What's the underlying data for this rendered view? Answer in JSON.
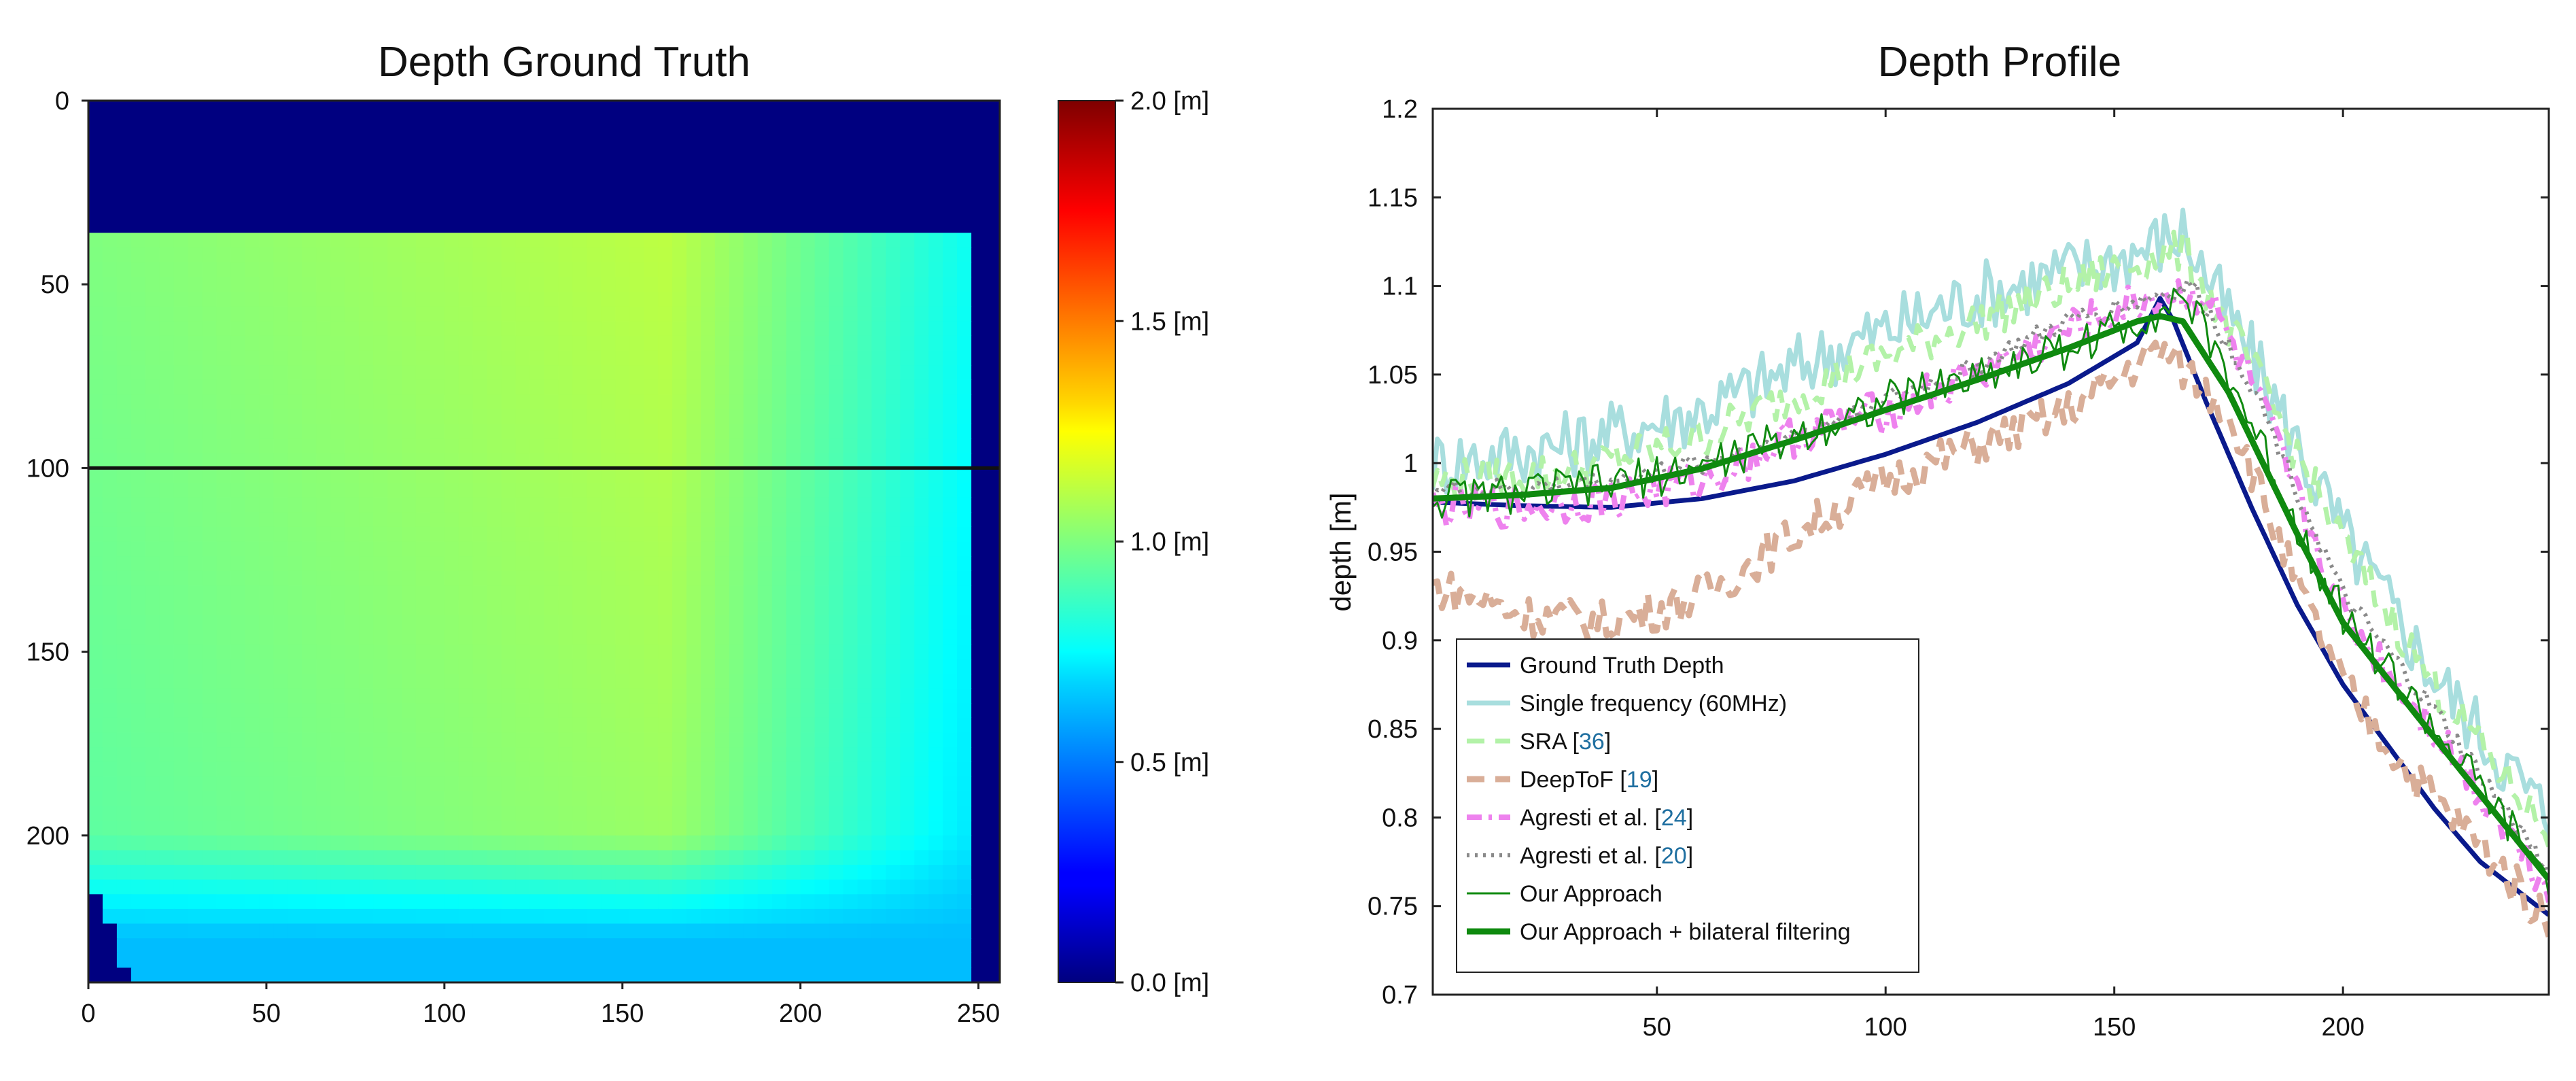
{
  "chart_data": [
    {
      "type": "heatmap",
      "title": "Depth Ground Truth",
      "x_ticks": [
        0,
        50,
        100,
        150,
        200,
        250
      ],
      "y_ticks": [
        0,
        50,
        100,
        150,
        200
      ],
      "xlim": [
        0,
        256
      ],
      "ylim": [
        240,
        0
      ],
      "colormap": "jet",
      "colorbar": {
        "range": [
          0.0,
          2.0
        ],
        "ticks": [
          0.0,
          0.5,
          1.0,
          1.5,
          2.0
        ],
        "tick_labels": [
          "0.0 [m]",
          "0.5 [m]",
          "1.0 [m]",
          "1.5 [m]",
          "2.0 [m]"
        ]
      },
      "profile_row": 100,
      "regions": {
        "background_depth": 0.0,
        "surface_top_row": 37,
        "surface_right_col": 246,
        "bright_seam_col": 163,
        "bright_seam_depth": 1.12,
        "left_edge_depth": 1.0,
        "right_edge_depth": 0.78,
        "bottom_floor_start_row": 210,
        "bottom_floor_depth": 0.62
      }
    },
    {
      "type": "line",
      "title": "Depth Profile",
      "xlabel": "",
      "ylabel": "depth [m]",
      "xlim": [
        1,
        245
      ],
      "ylim": [
        0.7,
        1.2
      ],
      "x_ticks": [
        50,
        100,
        150,
        200
      ],
      "y_ticks": [
        0.7,
        0.75,
        0.8,
        0.85,
        0.9,
        0.95,
        1,
        1.05,
        1.1,
        1.15,
        1.2
      ],
      "y_tick_labels": [
        "0.7",
        "0.75",
        "0.8",
        "0.85",
        "0.9",
        "0.95",
        "1",
        "1.05",
        "1.1",
        "1.15",
        "1.2"
      ],
      "legend_position": "bottom-left",
      "series": [
        {
          "name": "Ground Truth Depth",
          "label": "Ground Truth Depth",
          "ref": "",
          "color": "#0a1a8c",
          "style": "solid",
          "width": 7,
          "noise": 0,
          "x": [
            1,
            20,
            40,
            60,
            80,
            100,
            120,
            140,
            155,
            160,
            163,
            170,
            180,
            190,
            200,
            210,
            220,
            230,
            245
          ],
          "values": [
            0.978,
            0.976,
            0.975,
            0.98,
            0.99,
            1.005,
            1.023,
            1.045,
            1.068,
            1.093,
            1.08,
            1.035,
            0.975,
            0.92,
            0.875,
            0.84,
            0.805,
            0.775,
            0.745
          ]
        },
        {
          "name": "Single frequency (60MHz)",
          "label": "Single frequency (60MHz)",
          "ref": "",
          "color": "#a8dede",
          "style": "solid",
          "width": 7,
          "noise": 0.02,
          "x": [
            1,
            30,
            60,
            90,
            120,
            150,
            165,
            180,
            200,
            220,
            245
          ],
          "values": [
            1.0,
            1.01,
            1.03,
            1.065,
            1.095,
            1.115,
            1.13,
            1.06,
            0.96,
            0.88,
            0.8
          ]
        },
        {
          "name": "SRA",
          "label": "SRA [",
          "ref": "36",
          "color": "#b3f2a8",
          "style": "dash",
          "width": 7,
          "noise": 0.012,
          "x": [
            1,
            30,
            60,
            90,
            120,
            150,
            165,
            180,
            200,
            220,
            245
          ],
          "values": [
            0.99,
            0.995,
            1.015,
            1.05,
            1.08,
            1.11,
            1.12,
            1.055,
            0.955,
            0.875,
            0.79
          ]
        },
        {
          "name": "DeepToF",
          "label": "DeepToF [",
          "ref": "19",
          "color": "#d9ae98",
          "style": "dash",
          "width": 9,
          "noise": 0.012,
          "x": [
            1,
            10,
            20,
            40,
            60,
            80,
            100,
            120,
            140,
            160,
            175,
            190,
            200,
            210,
            220,
            230,
            245
          ],
          "values": [
            0.93,
            0.925,
            0.915,
            0.91,
            0.925,
            0.96,
            0.99,
            1.01,
            1.03,
            1.065,
            1.03,
            0.93,
            0.875,
            0.84,
            0.81,
            0.785,
            0.74
          ]
        },
        {
          "name": "Agresti et al. [24]",
          "label": "Agresti et al. [",
          "ref": "24",
          "color": "#ee82ee",
          "style": "dashdot",
          "width": 8,
          "noise": 0.012,
          "x": [
            1,
            20,
            40,
            60,
            80,
            100,
            120,
            140,
            160,
            170,
            180,
            200,
            220,
            245
          ],
          "values": [
            0.975,
            0.975,
            0.98,
            0.99,
            1.015,
            1.03,
            1.05,
            1.075,
            1.095,
            1.095,
            1.045,
            0.915,
            0.85,
            0.76
          ]
        },
        {
          "name": "Agresti et al. [20]",
          "label": "Agresti et al. [",
          "ref": "20",
          "color": "#8a8a8a",
          "style": "dot",
          "width": 6,
          "noise": 0.006,
          "x": [
            1,
            20,
            40,
            60,
            80,
            100,
            120,
            140,
            160,
            167,
            180,
            200,
            220,
            245
          ],
          "values": [
            0.985,
            0.985,
            0.99,
            1.0,
            1.015,
            1.035,
            1.055,
            1.08,
            1.095,
            1.1,
            1.045,
            0.925,
            0.86,
            0.77
          ]
        },
        {
          "name": "Our Approach",
          "label": "Our Approach",
          "ref": "",
          "color": "#0f8a0f",
          "style": "solid",
          "width": 3,
          "noise": 0.012,
          "x": [
            1,
            20,
            40,
            60,
            80,
            100,
            120,
            140,
            155,
            165,
            175,
            190,
            200,
            220,
            245
          ],
          "values": [
            0.98,
            0.983,
            0.988,
            0.998,
            1.015,
            1.035,
            1.05,
            1.065,
            1.08,
            1.095,
            1.05,
            0.965,
            0.915,
            0.85,
            0.765
          ]
        },
        {
          "name": "Our Approach + bilateral filtering",
          "label": "Our Approach + bilateral filtering",
          "ref": "",
          "color": "#0f8a0f",
          "style": "solid",
          "width": 9,
          "noise": 0,
          "x": [
            1,
            20,
            40,
            60,
            80,
            100,
            120,
            140,
            155,
            160,
            165,
            175,
            190,
            200,
            220,
            245
          ],
          "values": [
            0.98,
            0.982,
            0.986,
            0.997,
            1.013,
            1.03,
            1.047,
            1.065,
            1.08,
            1.083,
            1.08,
            1.04,
            0.96,
            0.91,
            0.845,
            0.765
          ]
        }
      ]
    }
  ]
}
